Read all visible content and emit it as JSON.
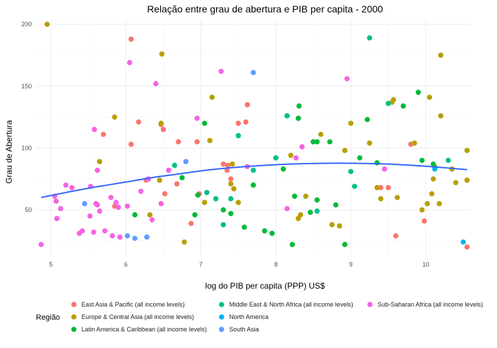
{
  "chart_data": {
    "type": "scatter",
    "title": "Relação entre grau de abertura e PIB per capita - 2000",
    "xlabel": "log do PIB per capita (PPP) US$",
    "ylabel": "Grau de Abertura",
    "xlim": [
      4.8,
      10.6
    ],
    "ylim": [
      12,
      204
    ],
    "x_ticks": [
      5,
      6,
      7,
      8,
      9,
      10
    ],
    "y_ticks": [
      50,
      100,
      150,
      200
    ],
    "grid": true,
    "legend_title": "Região",
    "legend_position": "bottom",
    "series": [
      {
        "name": "East Asia & Pacific (all income levels)",
        "color": "#F8766D",
        "points": [
          [
            5.7,
            111
          ],
          [
            5.85,
            53
          ],
          [
            6.07,
            188
          ],
          [
            6.07,
            103
          ],
          [
            6.17,
            121
          ],
          [
            6.27,
            74
          ],
          [
            6.47,
            119
          ],
          [
            6.5,
            115
          ],
          [
            6.52,
            63
          ],
          [
            6.68,
            71
          ],
          [
            6.7,
            105
          ],
          [
            6.87,
            39
          ],
          [
            6.95,
            105
          ],
          [
            6.98,
            63
          ],
          [
            7.3,
            87
          ],
          [
            7.35,
            82
          ],
          [
            7.36,
            86
          ],
          [
            7.4,
            75
          ],
          [
            7.5,
            120
          ],
          [
            7.6,
            121
          ],
          [
            7.62,
            135
          ],
          [
            9.4,
            68
          ],
          [
            9.5,
            68
          ],
          [
            9.6,
            29
          ],
          [
            9.8,
            103
          ],
          [
            9.98,
            41
          ],
          [
            10.55,
            20
          ]
        ]
      },
      {
        "name": "Europe & Central Asia (all income levels)",
        "color": "#B79F00",
        "points": [
          [
            4.95,
            200
          ],
          [
            5.65,
            89
          ],
          [
            5.85,
            125
          ],
          [
            6.32,
            46
          ],
          [
            6.45,
            74
          ],
          [
            6.47,
            120
          ],
          [
            6.48,
            176
          ],
          [
            6.78,
            24
          ],
          [
            7.05,
            56
          ],
          [
            7.15,
            141
          ],
          [
            7.12,
            106
          ],
          [
            7.4,
            71
          ],
          [
            7.42,
            87
          ],
          [
            7.44,
            67
          ],
          [
            7.5,
            56
          ],
          [
            8.2,
            94
          ],
          [
            8.3,
            43
          ],
          [
            8.33,
            46
          ],
          [
            8.4,
            61
          ],
          [
            8.5,
            105
          ],
          [
            8.6,
            111
          ],
          [
            8.75,
            38
          ],
          [
            8.85,
            37
          ],
          [
            8.92,
            98
          ],
          [
            9.0,
            120
          ],
          [
            9.25,
            104
          ],
          [
            9.35,
            68
          ],
          [
            9.4,
            59
          ],
          [
            9.55,
            137
          ],
          [
            9.57,
            139
          ],
          [
            9.62,
            60
          ],
          [
            9.85,
            104
          ],
          [
            9.95,
            50
          ],
          [
            10.02,
            55
          ],
          [
            10.05,
            141
          ],
          [
            10.08,
            63
          ],
          [
            10.1,
            75
          ],
          [
            10.12,
            85
          ],
          [
            10.18,
            55
          ],
          [
            10.2,
            126
          ],
          [
            10.2,
            175
          ],
          [
            10.35,
            83
          ],
          [
            10.4,
            72
          ],
          [
            10.55,
            98
          ],
          [
            10.55,
            74
          ]
        ]
      },
      {
        "name": "Latin America & Caribbean (all income levels)",
        "color": "#00BA38",
        "points": [
          [
            6.12,
            46
          ],
          [
            6.75,
            76
          ],
          [
            6.92,
            46
          ],
          [
            6.96,
            62
          ],
          [
            7.05,
            120
          ],
          [
            7.3,
            50
          ],
          [
            7.4,
            47
          ],
          [
            7.58,
            36
          ],
          [
            7.7,
            70
          ],
          [
            7.85,
            33
          ],
          [
            7.95,
            31
          ],
          [
            8.1,
            83
          ],
          [
            8.15,
            126
          ],
          [
            8.22,
            22
          ],
          [
            8.25,
            61
          ],
          [
            8.3,
            124
          ],
          [
            8.31,
            134
          ],
          [
            8.46,
            48
          ],
          [
            8.5,
            105
          ],
          [
            8.55,
            58
          ],
          [
            8.55,
            105
          ],
          [
            8.72,
            105
          ],
          [
            8.8,
            54
          ],
          [
            8.92,
            22
          ],
          [
            9.12,
            92
          ],
          [
            9.22,
            123
          ],
          [
            9.35,
            88
          ],
          [
            9.7,
            134
          ],
          [
            9.9,
            145
          ],
          [
            9.95,
            90
          ],
          [
            10.1,
            87
          ]
        ]
      },
      {
        "name": "Middle East & North Africa (all income levels)",
        "color": "#00C08B",
        "points": [
          [
            6.65,
            86
          ],
          [
            7.08,
            64
          ],
          [
            7.2,
            59
          ],
          [
            7.3,
            38
          ],
          [
            7.4,
            59
          ],
          [
            7.5,
            110
          ],
          [
            7.7,
            82
          ],
          [
            8.0,
            92
          ],
          [
            8.15,
            126
          ],
          [
            8.55,
            49
          ],
          [
            9.0,
            81
          ],
          [
            9.05,
            69
          ],
          [
            9.25,
            189
          ],
          [
            9.5,
            136
          ],
          [
            10.3,
            90
          ]
        ]
      },
      {
        "name": "North America",
        "color": "#00B4F0",
        "points": [
          [
            10.12,
            83
          ],
          [
            10.5,
            24
          ]
        ]
      },
      {
        "name": "South Asia",
        "color": "#619CFF",
        "points": [
          [
            5.45,
            55
          ],
          [
            6.02,
            29
          ],
          [
            6.12,
            27
          ],
          [
            6.28,
            28
          ],
          [
            6.3,
            75
          ],
          [
            6.8,
            89
          ],
          [
            7.7,
            161
          ]
        ]
      },
      {
        "name": "Sub-Saharan Africa (all income levels)",
        "color": "#F564E3",
        "points": [
          [
            4.87,
            22
          ],
          [
            5.05,
            61
          ],
          [
            5.07,
            57
          ],
          [
            5.08,
            43
          ],
          [
            5.13,
            51
          ],
          [
            5.2,
            70
          ],
          [
            5.28,
            68
          ],
          [
            5.38,
            31
          ],
          [
            5.42,
            33
          ],
          [
            5.52,
            45
          ],
          [
            5.53,
            69
          ],
          [
            5.57,
            32
          ],
          [
            5.58,
            115
          ],
          [
            5.6,
            55
          ],
          [
            5.62,
            54
          ],
          [
            5.62,
            82
          ],
          [
            5.65,
            49
          ],
          [
            5.72,
            33
          ],
          [
            5.8,
            60
          ],
          [
            5.82,
            29
          ],
          [
            5.87,
            56
          ],
          [
            5.9,
            52
          ],
          [
            5.92,
            28
          ],
          [
            6.02,
            53
          ],
          [
            6.05,
            169
          ],
          [
            6.2,
            65
          ],
          [
            6.3,
            75
          ],
          [
            6.35,
            42
          ],
          [
            6.4,
            152
          ],
          [
            6.47,
            55
          ],
          [
            6.57,
            82
          ],
          [
            6.95,
            124
          ],
          [
            7.27,
            162
          ],
          [
            7.62,
            85
          ],
          [
            8.15,
            51
          ],
          [
            8.27,
            92
          ],
          [
            8.35,
            101
          ],
          [
            8.95,
            156
          ],
          [
            9.45,
            83
          ]
        ]
      }
    ],
    "trend_line": {
      "type": "loess",
      "color": "#3366FF",
      "x": [
        4.87,
        5.2,
        5.5,
        5.8,
        6.1,
        6.4,
        6.7,
        7.0,
        7.3,
        7.6,
        7.9,
        8.2,
        8.5,
        8.8,
        9.1,
        9.4,
        9.7,
        10.0,
        10.3,
        10.55
      ],
      "y": [
        60,
        64,
        67.5,
        70.5,
        73.5,
        76.5,
        79,
        81.5,
        83.5,
        85,
        86.2,
        87,
        87.5,
        87.7,
        87.6,
        87.2,
        86.4,
        85.3,
        83.8,
        82.5
      ]
    }
  }
}
